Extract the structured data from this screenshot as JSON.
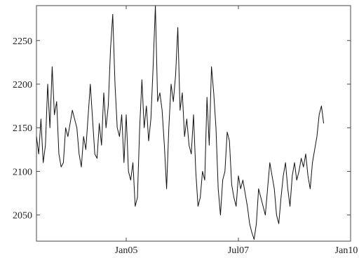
{
  "chart_data": {
    "type": "line",
    "title": "",
    "xlabel": "",
    "ylabel": "",
    "grid": false,
    "legend": "none",
    "x_ticks": [
      {
        "value": 2005.0,
        "label": "Jan05"
      },
      {
        "value": 2007.5,
        "label": "Jul07"
      },
      {
        "value": 2010.0,
        "label": "Jan10"
      }
    ],
    "y_ticks": [
      2050,
      2100,
      2150,
      2200,
      2250
    ],
    "xlim": [
      2003.0,
      2010.0
    ],
    "ylim": [
      2020,
      2290
    ],
    "series": [
      {
        "color": "#111111",
        "points": [
          [
            2003.0,
            2140
          ],
          [
            2003.05,
            2120
          ],
          [
            2003.1,
            2160
          ],
          [
            2003.15,
            2110
          ],
          [
            2003.2,
            2130
          ],
          [
            2003.25,
            2200
          ],
          [
            2003.3,
            2150
          ],
          [
            2003.35,
            2220
          ],
          [
            2003.4,
            2165
          ],
          [
            2003.45,
            2180
          ],
          [
            2003.5,
            2120
          ],
          [
            2003.55,
            2105
          ],
          [
            2003.6,
            2110
          ],
          [
            2003.65,
            2150
          ],
          [
            2003.7,
            2140
          ],
          [
            2003.8,
            2170
          ],
          [
            2003.9,
            2150
          ],
          [
            2003.95,
            2120
          ],
          [
            2004.0,
            2105
          ],
          [
            2004.05,
            2140
          ],
          [
            2004.1,
            2125
          ],
          [
            2004.2,
            2200
          ],
          [
            2004.25,
            2160
          ],
          [
            2004.3,
            2120
          ],
          [
            2004.35,
            2115
          ],
          [
            2004.4,
            2155
          ],
          [
            2004.45,
            2130
          ],
          [
            2004.5,
            2190
          ],
          [
            2004.55,
            2150
          ],
          [
            2004.6,
            2175
          ],
          [
            2004.65,
            2240
          ],
          [
            2004.7,
            2280
          ],
          [
            2004.75,
            2200
          ],
          [
            2004.8,
            2150
          ],
          [
            2004.85,
            2140
          ],
          [
            2004.9,
            2165
          ],
          [
            2004.95,
            2110
          ],
          [
            2005.0,
            2165
          ],
          [
            2005.05,
            2100
          ],
          [
            2005.1,
            2090
          ],
          [
            2005.15,
            2110
          ],
          [
            2005.2,
            2060
          ],
          [
            2005.25,
            2070
          ],
          [
            2005.3,
            2150
          ],
          [
            2005.35,
            2205
          ],
          [
            2005.4,
            2150
          ],
          [
            2005.45,
            2175
          ],
          [
            2005.5,
            2135
          ],
          [
            2005.55,
            2160
          ],
          [
            2005.6,
            2220
          ],
          [
            2005.65,
            2290
          ],
          [
            2005.7,
            2180
          ],
          [
            2005.75,
            2190
          ],
          [
            2005.8,
            2170
          ],
          [
            2005.85,
            2130
          ],
          [
            2005.9,
            2080
          ],
          [
            2005.95,
            2150
          ],
          [
            2006.0,
            2200
          ],
          [
            2006.05,
            2180
          ],
          [
            2006.1,
            2210
          ],
          [
            2006.15,
            2265
          ],
          [
            2006.2,
            2170
          ],
          [
            2006.25,
            2190
          ],
          [
            2006.3,
            2140
          ],
          [
            2006.35,
            2160
          ],
          [
            2006.4,
            2130
          ],
          [
            2006.45,
            2120
          ],
          [
            2006.5,
            2165
          ],
          [
            2006.55,
            2100
          ],
          [
            2006.6,
            2060
          ],
          [
            2006.65,
            2070
          ],
          [
            2006.7,
            2100
          ],
          [
            2006.75,
            2090
          ],
          [
            2006.8,
            2185
          ],
          [
            2006.85,
            2130
          ],
          [
            2006.9,
            2220
          ],
          [
            2006.95,
            2190
          ],
          [
            2007.0,
            2150
          ],
          [
            2007.05,
            2080
          ],
          [
            2007.1,
            2050
          ],
          [
            2007.15,
            2090
          ],
          [
            2007.2,
            2100
          ],
          [
            2007.25,
            2145
          ],
          [
            2007.3,
            2135
          ],
          [
            2007.35,
            2085
          ],
          [
            2007.4,
            2070
          ],
          [
            2007.45,
            2060
          ],
          [
            2007.5,
            2095
          ],
          [
            2007.55,
            2080
          ],
          [
            2007.6,
            2090
          ],
          [
            2007.65,
            2075
          ],
          [
            2007.7,
            2060
          ],
          [
            2007.75,
            2040
          ],
          [
            2007.8,
            2030
          ],
          [
            2007.85,
            2022
          ],
          [
            2007.9,
            2040
          ],
          [
            2007.95,
            2080
          ],
          [
            2008.0,
            2070
          ],
          [
            2008.05,
            2060
          ],
          [
            2008.1,
            2050
          ],
          [
            2008.2,
            2110
          ],
          [
            2008.25,
            2095
          ],
          [
            2008.3,
            2080
          ],
          [
            2008.35,
            2050
          ],
          [
            2008.4,
            2040
          ],
          [
            2008.45,
            2070
          ],
          [
            2008.5,
            2095
          ],
          [
            2008.55,
            2110
          ],
          [
            2008.6,
            2080
          ],
          [
            2008.65,
            2060
          ],
          [
            2008.7,
            2095
          ],
          [
            2008.75,
            2110
          ],
          [
            2008.8,
            2090
          ],
          [
            2008.85,
            2100
          ],
          [
            2008.9,
            2115
          ],
          [
            2008.95,
            2105
          ],
          [
            2009.0,
            2120
          ],
          [
            2009.05,
            2095
          ],
          [
            2009.1,
            2080
          ],
          [
            2009.15,
            2110
          ],
          [
            2009.2,
            2125
          ],
          [
            2009.25,
            2140
          ],
          [
            2009.3,
            2165
          ],
          [
            2009.35,
            2175
          ],
          [
            2009.4,
            2155
          ]
        ]
      }
    ]
  }
}
